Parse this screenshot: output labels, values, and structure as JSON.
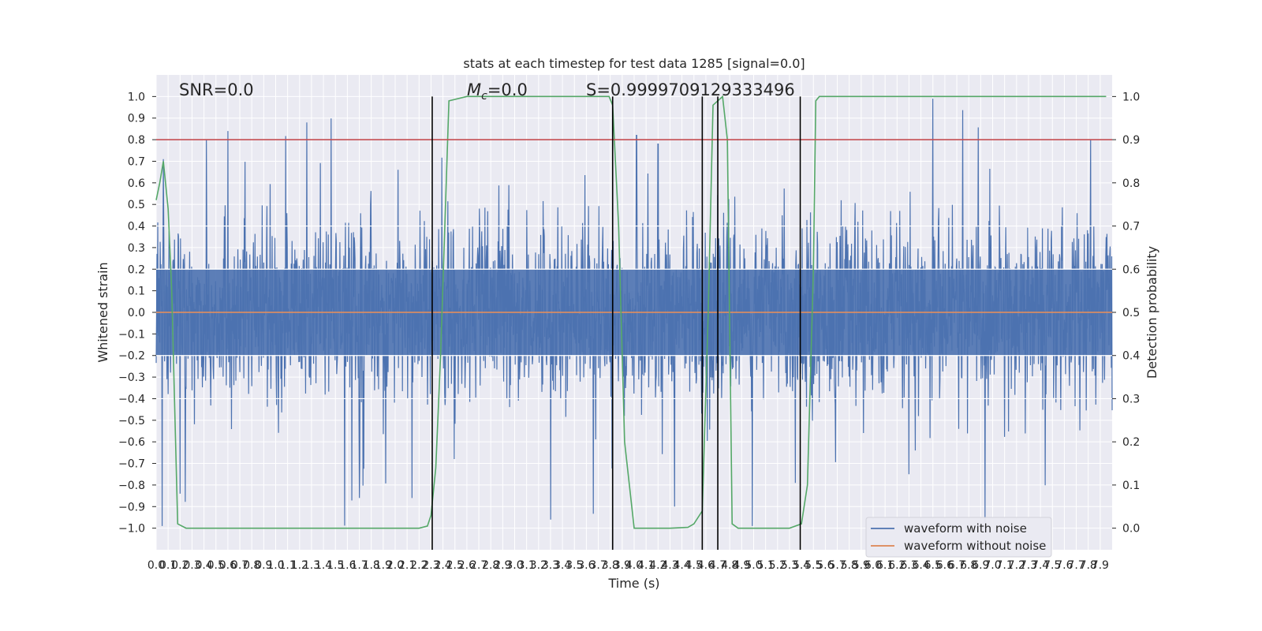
{
  "chart_data": {
    "type": "line",
    "title": "stats at each timestep for test data 1285 [signal=0.0]",
    "xlabel": "Time (s)",
    "ylabel": "Whitened strain",
    "y2label": "Detection probability",
    "xlim": [
      0.0,
      8.0
    ],
    "ylim": [
      -1.1,
      1.1
    ],
    "y2lim": [
      -0.05,
      1.05
    ],
    "grid": true,
    "x_ticks": [
      0.0,
      0.1,
      0.2,
      0.3,
      0.4,
      0.5,
      0.6,
      0.7,
      0.8,
      0.9,
      1.0,
      1.1,
      1.2,
      1.3,
      1.4,
      1.5,
      1.6,
      1.7,
      1.8,
      1.9,
      2.0,
      2.1,
      2.2,
      2.3,
      2.4,
      2.5,
      2.6,
      2.7,
      2.8,
      2.9,
      3.0,
      3.1,
      3.2,
      3.3,
      3.4,
      3.5,
      3.6,
      3.7,
      3.8,
      3.9,
      4.0,
      4.1,
      4.2,
      4.3,
      4.4,
      4.5,
      4.6,
      4.7,
      4.8,
      4.9,
      5.0,
      5.1,
      5.2,
      5.3,
      5.4,
      5.5,
      5.6,
      5.7,
      5.8,
      5.9,
      6.0,
      6.1,
      6.2,
      6.3,
      6.4,
      6.5,
      6.6,
      6.7,
      6.8,
      6.9,
      7.0,
      7.1,
      7.2,
      7.3,
      7.4,
      7.5,
      7.6,
      7.7,
      7.8,
      7.9
    ],
    "y_ticks": [
      1.0,
      0.9,
      0.8,
      0.7,
      0.6,
      0.5,
      0.4,
      0.3,
      0.2,
      0.1,
      0.0,
      -0.1,
      -0.2,
      -0.3,
      -0.4,
      -0.5,
      -0.6,
      -0.7,
      -0.8,
      -0.9,
      -1.0
    ],
    "y2_ticks": [
      1.0,
      0.9,
      0.8,
      0.7,
      0.6,
      0.5,
      0.4,
      0.3,
      0.2,
      0.1,
      0.0
    ],
    "annotations": {
      "snr": "SNR=0.0",
      "mc_symbol": "M",
      "mc_sub": "c",
      "mc_value": "=0.0",
      "s": "S=0.9999709129333496"
    },
    "legend_placement": "lower-right",
    "series": [
      {
        "name": "waveform with noise",
        "color": "#4c72b0",
        "axis": "left",
        "noise_amplitude": 0.2,
        "peaks": [
          [
            0.06,
            0.71
          ],
          [
            0.2,
            -0.84
          ],
          [
            0.42,
            0.8
          ],
          [
            0.6,
            0.84
          ],
          [
            1.26,
            0.88
          ],
          [
            1.7,
            -0.86
          ],
          [
            2.14,
            -0.86
          ],
          [
            3.3,
            -0.96
          ],
          [
            4.02,
            0.82
          ],
          [
            4.2,
            0.78
          ],
          [
            4.34,
            -0.9
          ],
          [
            6.5,
            1.0
          ],
          [
            6.3,
            -0.75
          ],
          [
            7.82,
            0.8
          ]
        ]
      },
      {
        "name": "waveform without noise",
        "color": "#dd8452",
        "axis": "left",
        "x": [
          0.0,
          8.0
        ],
        "y": [
          0.0,
          0.0
        ]
      },
      {
        "name": "",
        "color": "#55a868",
        "axis": "right",
        "x": [
          0.0,
          0.03,
          0.06,
          0.1,
          0.13,
          0.18,
          0.25,
          0.5,
          1.0,
          1.5,
          2.0,
          2.2,
          2.27,
          2.3,
          2.34,
          2.38,
          2.45,
          2.6,
          3.0,
          3.5,
          3.79,
          3.82,
          3.87,
          3.92,
          4.0,
          4.3,
          4.45,
          4.5,
          4.57,
          4.62,
          4.66,
          4.7,
          4.74,
          4.78,
          4.82,
          4.87,
          5.0,
          5.3,
          5.4,
          5.45,
          5.5,
          5.52,
          5.55,
          6.0,
          7.0,
          7.95
        ],
        "y": [
          0.76,
          0.8,
          0.85,
          0.74,
          0.55,
          0.01,
          0.0,
          0.0,
          0.0,
          0.0,
          0.0,
          0.0,
          0.005,
          0.03,
          0.14,
          0.4,
          0.99,
          1.0,
          1.0,
          1.0,
          1.0,
          0.98,
          0.7,
          0.2,
          0.0,
          0.0,
          0.002,
          0.01,
          0.04,
          0.5,
          0.98,
          0.99,
          1.0,
          0.9,
          0.01,
          0.0,
          0.0,
          0.0,
          0.01,
          0.1,
          0.6,
          0.99,
          1.0,
          1.0,
          1.0,
          1.0
        ]
      },
      {
        "name": "",
        "color": "#c44e52",
        "axis": "left",
        "x": [
          0.0,
          8.0
        ],
        "y": [
          0.8,
          0.8
        ]
      }
    ],
    "vertical_lines": [
      {
        "x": 2.31,
        "y1": -0.05,
        "y2": 1.0
      },
      {
        "x": 3.82,
        "y1": -0.05,
        "y2": 1.0
      },
      {
        "x": 4.57,
        "y1": -0.05,
        "y2": 1.0
      },
      {
        "x": 4.7,
        "y1": -0.05,
        "y2": 1.0
      },
      {
        "x": 5.39,
        "y1": -0.05,
        "y2": 1.0
      }
    ],
    "horizontal_white_lines_y2": [
      0.3,
      0.4,
      0.5,
      0.6,
      0.7
    ]
  }
}
